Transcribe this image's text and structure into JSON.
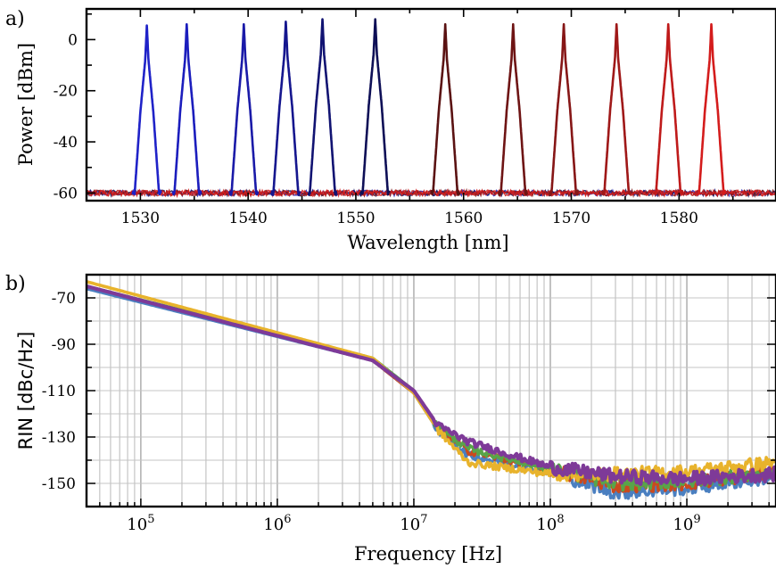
{
  "chart_data": [
    {
      "panel_label": "a)",
      "type": "line",
      "xlabel": "Wavelength [nm]",
      "ylabel": "Power [dBm]",
      "xlim": [
        1525,
        1589
      ],
      "ylim": [
        -63,
        12
      ],
      "xticks": [
        1530,
        1540,
        1550,
        1560,
        1570,
        1580
      ],
      "yticks": [
        0,
        -20,
        -40,
        -60
      ],
      "noise_floor_dbm": -60,
      "grid": false,
      "series": [
        {
          "peak_wavelength_nm": 1530.6,
          "peak_power_dbm": 5.5,
          "color": "#1f22c8"
        },
        {
          "peak_wavelength_nm": 1534.3,
          "peak_power_dbm": 6.0,
          "color": "#1b1dbd"
        },
        {
          "peak_wavelength_nm": 1539.6,
          "peak_power_dbm": 6.0,
          "color": "#1a1aa8"
        },
        {
          "peak_wavelength_nm": 1543.5,
          "peak_power_dbm": 7.0,
          "color": "#15168e"
        },
        {
          "peak_wavelength_nm": 1546.9,
          "peak_power_dbm": 8.0,
          "color": "#111372"
        },
        {
          "peak_wavelength_nm": 1551.8,
          "peak_power_dbm": 8.0,
          "color": "#0e0f56"
        },
        {
          "peak_wavelength_nm": 1558.3,
          "peak_power_dbm": 6.0,
          "color": "#5a1212"
        },
        {
          "peak_wavelength_nm": 1564.6,
          "peak_power_dbm": 6.0,
          "color": "#6e1414"
        },
        {
          "peak_wavelength_nm": 1569.3,
          "peak_power_dbm": 6.0,
          "color": "#861616"
        },
        {
          "peak_wavelength_nm": 1574.2,
          "peak_power_dbm": 6.0,
          "color": "#9f1818"
        },
        {
          "peak_wavelength_nm": 1579.0,
          "peak_power_dbm": 6.0,
          "color": "#bf1a1a"
        },
        {
          "peak_wavelength_nm": 1583.0,
          "peak_power_dbm": 6.0,
          "color": "#d41c1c"
        }
      ]
    },
    {
      "panel_label": "b)",
      "type": "line",
      "xlabel": "Frequency [Hz]",
      "ylabel": "RIN [dBc/Hz]",
      "xscale": "log",
      "xlim": [
        40000,
        4500000000
      ],
      "ylim": [
        -160,
        -60
      ],
      "xticks": [
        "10^5",
        "10^6",
        "10^7",
        "10^8",
        "10^9"
      ],
      "yticks": [
        -70,
        -90,
        -110,
        -130,
        -150
      ],
      "grid": true,
      "series": [
        {
          "color": "#4a7fc0",
          "points": [
            [
              40000,
              -66
            ],
            [
              5000000,
              -97
            ],
            [
              10000000,
              -111
            ],
            [
              15000000,
              -127
            ],
            [
              25000000,
              -138
            ],
            [
              100000000,
              -145
            ],
            [
              300000000,
              -154
            ],
            [
              1000000000,
              -152
            ],
            [
              4500000000,
              -147
            ]
          ]
        },
        {
          "color": "#c94a1e",
          "points": [
            [
              40000,
              -65
            ],
            [
              5000000,
              -97
            ],
            [
              10000000,
              -111
            ],
            [
              15000000,
              -126
            ],
            [
              25000000,
              -136
            ],
            [
              100000000,
              -144
            ],
            [
              300000000,
              -151
            ],
            [
              1000000000,
              -150
            ],
            [
              4500000000,
              -145
            ]
          ]
        },
        {
          "color": "#58a44a",
          "points": [
            [
              40000,
              -65
            ],
            [
              5000000,
              -96
            ],
            [
              10000000,
              -110
            ],
            [
              15000000,
              -126
            ],
            [
              25000000,
              -135
            ],
            [
              100000000,
              -144
            ],
            [
              300000000,
              -150
            ],
            [
              1000000000,
              -149
            ],
            [
              4500000000,
              -145
            ]
          ]
        },
        {
          "color": "#e8b32c",
          "points": [
            [
              40000,
              -63
            ],
            [
              5000000,
              -96
            ],
            [
              10000000,
              -111
            ],
            [
              15000000,
              -127
            ],
            [
              25000000,
              -141
            ],
            [
              100000000,
              -146
            ],
            [
              300000000,
              -146
            ],
            [
              1000000000,
              -145
            ],
            [
              4500000000,
              -141
            ]
          ]
        },
        {
          "color": "#7e3a98",
          "points": [
            [
              40000,
              -65
            ],
            [
              5000000,
              -97
            ],
            [
              10000000,
              -110
            ],
            [
              15000000,
              -125
            ],
            [
              25000000,
              -132
            ],
            [
              100000000,
              -143
            ],
            [
              300000000,
              -147
            ],
            [
              1000000000,
              -148
            ],
            [
              4500000000,
              -146
            ]
          ]
        }
      ]
    }
  ]
}
